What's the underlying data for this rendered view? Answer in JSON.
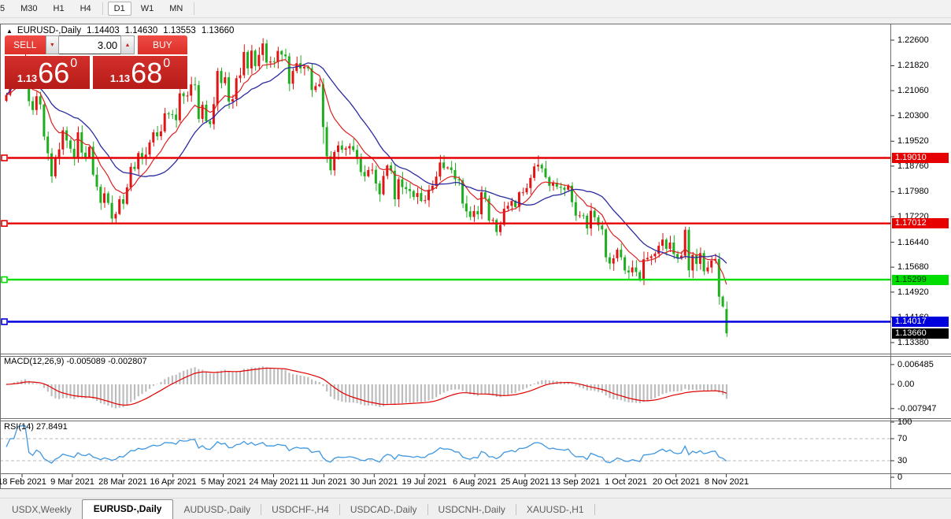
{
  "toolbar": {
    "partial_item": "5",
    "timeframes": [
      "M30",
      "H1",
      "H4",
      "D1",
      "W1",
      "MN"
    ],
    "active": "D1"
  },
  "chart_header": {
    "collapse_icon": "▲",
    "symbol": "EURUSD-,Daily",
    "open": "1.14403",
    "high": "1.14630",
    "low": "1.13553",
    "close": "1.13660"
  },
  "trade_panel": {
    "sell_label": "SELL",
    "buy_label": "BUY",
    "volume": "3.00",
    "spinner_down_icon": "▼",
    "spinner_up_icon": "▲",
    "sell_price": {
      "prefix": "1.13",
      "big": "66",
      "sup": "0"
    },
    "buy_price": {
      "prefix": "1.13",
      "big": "68",
      "sup": "0"
    }
  },
  "macd": {
    "label": "MACD(12,26,9) -0.005089 -0.002807",
    "main_value": -0.005089,
    "signal_value": -0.002807,
    "y_ticks": [
      {
        "v": 0.006485,
        "label": "0.006485"
      },
      {
        "v": 0,
        "label": "0.00"
      },
      {
        "v": -0.007947,
        "label": "-0.007947"
      }
    ],
    "hist_color": "#bdbdbd",
    "signal_color": "#e00000"
  },
  "rsi": {
    "label": "RSI(14) 27.8491",
    "value": 27.8491,
    "period": 14,
    "levels": [
      70,
      30
    ],
    "y_ticks": [
      {
        "v": 100,
        "label": "100"
      },
      {
        "v": 70,
        "label": "70"
      },
      {
        "v": 30,
        "label": "30"
      },
      {
        "v": 0,
        "label": "0"
      }
    ],
    "line_color": "#3f97e0",
    "level_color": "#c8c8c8"
  },
  "tabs": [
    {
      "label": "USDX,Weekly",
      "active": false
    },
    {
      "label": "EURUSD-,Daily",
      "active": true
    },
    {
      "label": "AUDUSD-,Daily",
      "active": false
    },
    {
      "label": "USDCHF-,H4",
      "active": false
    },
    {
      "label": "USDCAD-,Daily",
      "active": false
    },
    {
      "label": "USDCNH-,Daily",
      "active": false
    },
    {
      "label": "XAUUSD-,H1",
      "active": false
    }
  ],
  "chart_data": {
    "type": "candlestick",
    "symbol": "EURUSD-",
    "timeframe": "Daily",
    "up_color": "#e01414",
    "down_color": "#1fae1f",
    "ma_fast_color": "#dd2020",
    "ma_slow_color": "#2a2aa0",
    "ma_fast_period": 10,
    "ma_slow_period": 20,
    "ylim": [
      1.1304,
      1.2308
    ],
    "y_ticks": [
      "1.22600",
      "1.21820",
      "1.21060",
      "1.20300",
      "1.19520",
      "1.18760",
      "1.17980",
      "1.17220",
      "1.16440",
      "1.15680",
      "1.14920",
      "1.14160",
      "1.13380"
    ],
    "x_labels": [
      "18 Feb 2021",
      "9 Mar 2021",
      "28 Mar 2021",
      "16 Apr 2021",
      "5 May 2021",
      "24 May 2021",
      "11 Jun 2021",
      "30 Jun 2021",
      "19 Jul 2021",
      "6 Aug 2021",
      "25 Aug 2021",
      "13 Sep 2021",
      "1 Oct 2021",
      "20 Oct 2021",
      "8 Nov 2021"
    ],
    "hlines": [
      {
        "price": 1.1901,
        "label": "1.19010",
        "color": "#e60000",
        "text_color": "#ffffff"
      },
      {
        "price": 1.17012,
        "label": "1.17012",
        "color": "#e60000",
        "text_color": "#ffffff"
      },
      {
        "price": 1.15299,
        "label": "1.15299",
        "color": "#00dd00",
        "text_color": "#003300"
      },
      {
        "price": 1.14017,
        "label": "1.14017",
        "color": "#0000dd",
        "text_color": "#ffffff"
      }
    ],
    "current_price": {
      "price": 1.1366,
      "label": "1.13660",
      "color": "#000000",
      "text_color": "#ffffff"
    },
    "first_open": 1.2075,
    "closes": [
      1.2093,
      1.2118,
      1.2156,
      1.215,
      1.2168,
      1.2176,
      1.2074,
      1.2047,
      1.2089,
      1.2064,
      1.1966,
      1.1915,
      1.1845,
      1.1899,
      1.1927,
      1.1985,
      1.1954,
      1.1929,
      1.19,
      1.1979,
      1.1917,
      1.1903,
      1.1935,
      1.185,
      1.1813,
      1.1764,
      1.1793,
      1.1764,
      1.1716,
      1.173,
      1.1775,
      1.1761,
      1.1811,
      1.1874,
      1.1867,
      1.1916,
      1.1899,
      1.1911,
      1.1948,
      1.1979,
      1.1967,
      1.1982,
      1.2037,
      1.2034,
      1.2033,
      1.2016,
      1.2098,
      1.2089,
      1.2091,
      1.2125,
      1.2123,
      1.202,
      1.2063,
      1.2013,
      1.2004,
      1.2065,
      1.2166,
      1.2129,
      1.2147,
      1.2073,
      1.208,
      1.2144,
      1.2153,
      1.2224,
      1.2174,
      1.2228,
      1.2181,
      1.2215,
      1.225,
      1.2192,
      1.2195,
      1.2193,
      1.2227,
      1.2216,
      1.2211,
      1.2127,
      1.2166,
      1.219,
      1.2174,
      1.2179,
      1.2174,
      1.2108,
      1.212,
      1.2125,
      1.1995,
      1.1906,
      1.1863,
      1.1919,
      1.1939,
      1.1926,
      1.193,
      1.1937,
      1.1925,
      1.1898,
      1.1858,
      1.1845,
      1.1864,
      1.1865,
      1.1823,
      1.179,
      1.1846,
      1.1878,
      1.1862,
      1.1775,
      1.1836,
      1.1812,
      1.1806,
      1.18,
      1.1782,
      1.1794,
      1.177,
      1.1772,
      1.1804,
      1.1816,
      1.1844,
      1.1887,
      1.187,
      1.1872,
      1.1864,
      1.1836,
      1.1833,
      1.1762,
      1.1738,
      1.1721,
      1.1739,
      1.1729,
      1.1796,
      1.1777,
      1.171,
      1.1712,
      1.1675,
      1.1697,
      1.1746,
      1.1755,
      1.177,
      1.1751,
      1.1796,
      1.1796,
      1.1809,
      1.184,
      1.1875,
      1.188,
      1.1869,
      1.1842,
      1.1816,
      1.1825,
      1.1813,
      1.181,
      1.1804,
      1.1816,
      1.1766,
      1.1725,
      1.1726,
      1.1725,
      1.1686,
      1.174,
      1.172,
      1.1695,
      1.1683,
      1.1598,
      1.1579,
      1.1595,
      1.1621,
      1.1598,
      1.1558,
      1.1552,
      1.1567,
      1.1553,
      1.1531,
      1.1592,
      1.1596,
      1.1601,
      1.1609,
      1.1633,
      1.1652,
      1.1624,
      1.1643,
      1.1608,
      1.1596,
      1.1603,
      1.1682,
      1.1558,
      1.1606,
      1.1578,
      1.1611,
      1.1555,
      1.1567,
      1.1588,
      1.1593,
      1.1478,
      1.1448,
      1.1366
    ],
    "overrides": {
      "5": {
        "h": 1.2243
      },
      "29": {
        "l": 1.1704
      },
      "68": {
        "h": 1.2266
      },
      "84": {
        "l": 1.1944
      },
      "131": {
        "l": 1.1664
      },
      "141": {
        "h": 1.1909
      },
      "168": {
        "l": 1.1524
      },
      "180": {
        "h": 1.1692
      },
      "189": {
        "l": 1.1454
      },
      "191": {
        "o": 1.14403,
        "h": 1.1463,
        "l": 1.13553,
        "c": 1.1366
      }
    },
    "macd_params": [
      12,
      26,
      9
    ],
    "rsi_period": 14
  }
}
